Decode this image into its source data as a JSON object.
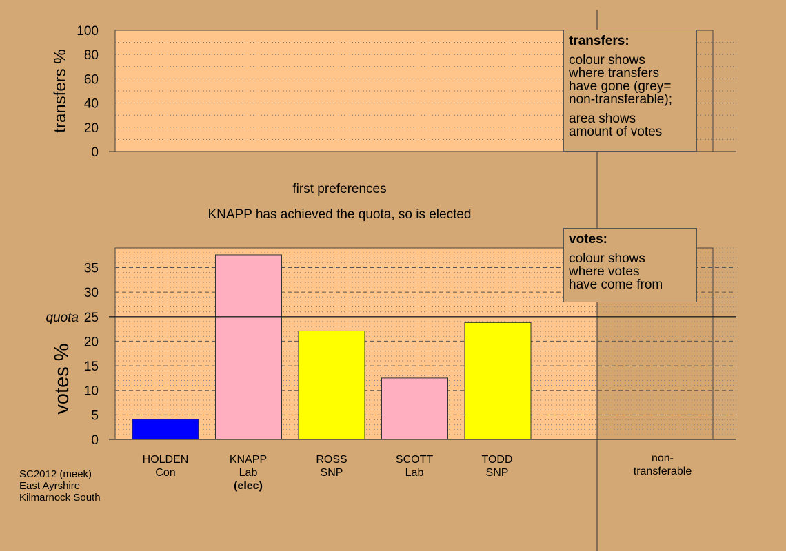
{
  "chart_data": [
    {
      "type": "bar",
      "ylabel": "transfers %",
      "ylim": [
        0,
        100
      ],
      "yticks": [
        "0",
        "20",
        "40",
        "60",
        "80",
        "100"
      ],
      "values": [],
      "legend": {
        "title": "transfers:",
        "lines": [
          "colour shows",
          "where transfers",
          "have gone (grey=",
          "non-transferable);"
        ],
        "lines2": [
          "area shows",
          "amount of votes"
        ],
        "placement": "top-right"
      }
    },
    {
      "type": "bar",
      "ylabel": "votes %",
      "ylim": [
        0,
        39
      ],
      "yticks": [
        "0",
        "5",
        "10",
        "15",
        "20",
        "25",
        "30",
        "35"
      ],
      "quota": {
        "value": 25,
        "label": "quota"
      },
      "categories": [
        {
          "name": "HOLDEN",
          "party": "Con",
          "note": ""
        },
        {
          "name": "KNAPP",
          "party": "Lab",
          "note": "(elec)"
        },
        {
          "name": "ROSS",
          "party": "SNP",
          "note": ""
        },
        {
          "name": "SCOTT",
          "party": "Lab",
          "note": ""
        },
        {
          "name": "TODD",
          "party": "SNP",
          "note": ""
        }
      ],
      "values": [
        4.1,
        37.6,
        22.1,
        12.5,
        23.8
      ],
      "bar_colors": [
        "#0000ff",
        "#ffafc0",
        "#ffff00",
        "#ffafc0",
        "#ffff00"
      ],
      "extra_category": "non-\ntransferable",
      "legend": {
        "title": "votes:",
        "lines": [
          "colour shows",
          "where votes",
          "have come from"
        ],
        "placement": "top-right"
      }
    }
  ],
  "captions": {
    "stage": "first preferences",
    "status": "KNAPP has achieved the quota, so is elected"
  },
  "footer": [
    "SC2012 (meek)",
    "East Ayrshire",
    "Kilmarnock South"
  ],
  "colors": {
    "background": "#d3a874",
    "plot_area": "#ffc58a",
    "nontransferable_area": "#d4a56f"
  }
}
